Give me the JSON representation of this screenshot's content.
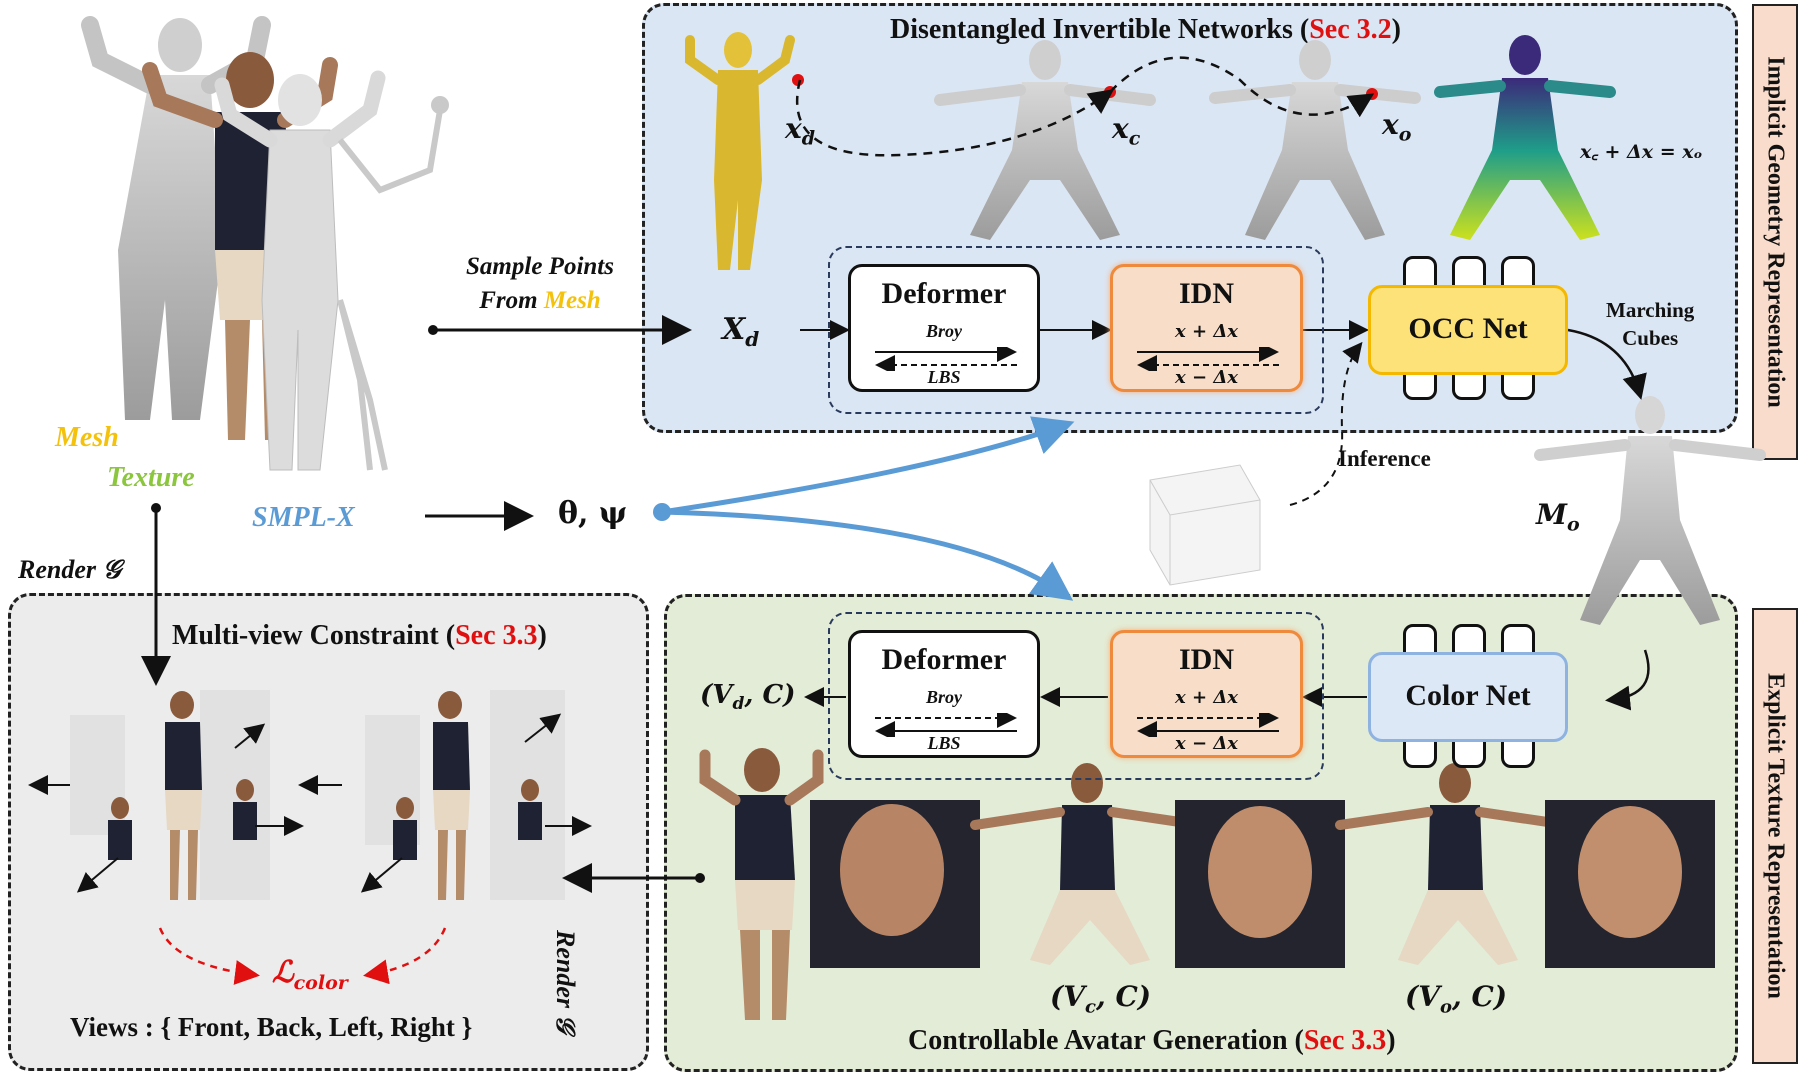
{
  "panels": {
    "invertible": {
      "title": "Disentangled Invertible Networks (",
      "ref": "Sec 3.2",
      "close": ")"
    },
    "multiview": {
      "title": "Multi-view Constraint (",
      "ref": "Sec 3.3",
      "close": ")"
    },
    "avatar": {
      "title": "Controllable Avatar Generation (",
      "ref": "Sec 3.3",
      "close": ")"
    }
  },
  "side_tabs": {
    "top": "Implicit Geometry Representation",
    "bottom": "Explicit Texture Representation"
  },
  "inputs": {
    "mesh": "Mesh",
    "texture": "Texture",
    "smplx": "SMPL-X",
    "sample_points": "Sample Points",
    "from_mesh_prefix": "From ",
    "from_mesh_word": "Mesh",
    "render_left": "Render 𝒢",
    "render_bottom": "Render 𝒢"
  },
  "symbols": {
    "x_d": "x",
    "x_d_sub": "d",
    "x_c": "x",
    "x_c_sub": "c",
    "x_o": "x",
    "x_o_sub": "o",
    "delta_eq": "x꜀ + Δx = xₒ",
    "X_d": "X",
    "X_d_sub": "d",
    "theta_psi": "θ, ψ",
    "M_o": "M",
    "M_o_sub": "o",
    "Vd_C": "(V",
    "Vd_sub": "d",
    "Vd_tail": ", C)",
    "Vc_C": "(V",
    "Vc_sub": "c",
    "Vc_tail": ", C)",
    "Vo_C": "(V",
    "Vo_sub": "o",
    "Vo_tail": ", C)",
    "L_color": "ℒ",
    "L_color_sub": "color"
  },
  "top_row": {
    "deformer": {
      "title": "Deformer",
      "fwd": "Broy",
      "bwd": "LBS"
    },
    "idn": {
      "title": "IDN",
      "fwd": "x + Δx",
      "bwd": "x − Δx"
    },
    "occ": {
      "title": "OCC Net"
    },
    "marching": "Marching\nCubes",
    "inference": "Inference"
  },
  "bottom_row": {
    "deformer": {
      "title": "Deformer",
      "fwd": "Broy",
      "bwd": "LBS"
    },
    "idn": {
      "title": "IDN",
      "fwd": "x + Δx",
      "bwd": "x − Δx"
    },
    "color": {
      "title": "Color Net"
    }
  },
  "views_line": "Views : { Front, Back, Left, Right }",
  "colors": {
    "panel_blue": "#dbe6f4",
    "panel_grey": "#ececec",
    "panel_green": "#e3ecd6",
    "idn_fill": "#f8ddc8",
    "idn_border": "#ef8a3c",
    "occ_fill": "#fde27a",
    "occ_border": "#f5b800",
    "color_fill": "#dde8f7",
    "color_border": "#8fb3e0",
    "mesh_yellow": "#f4c20d",
    "texture_green": "#8cc63f",
    "smplx_blue": "#5b9bd5",
    "flow_blue": "#5b9bd5",
    "red": "#e01010"
  }
}
